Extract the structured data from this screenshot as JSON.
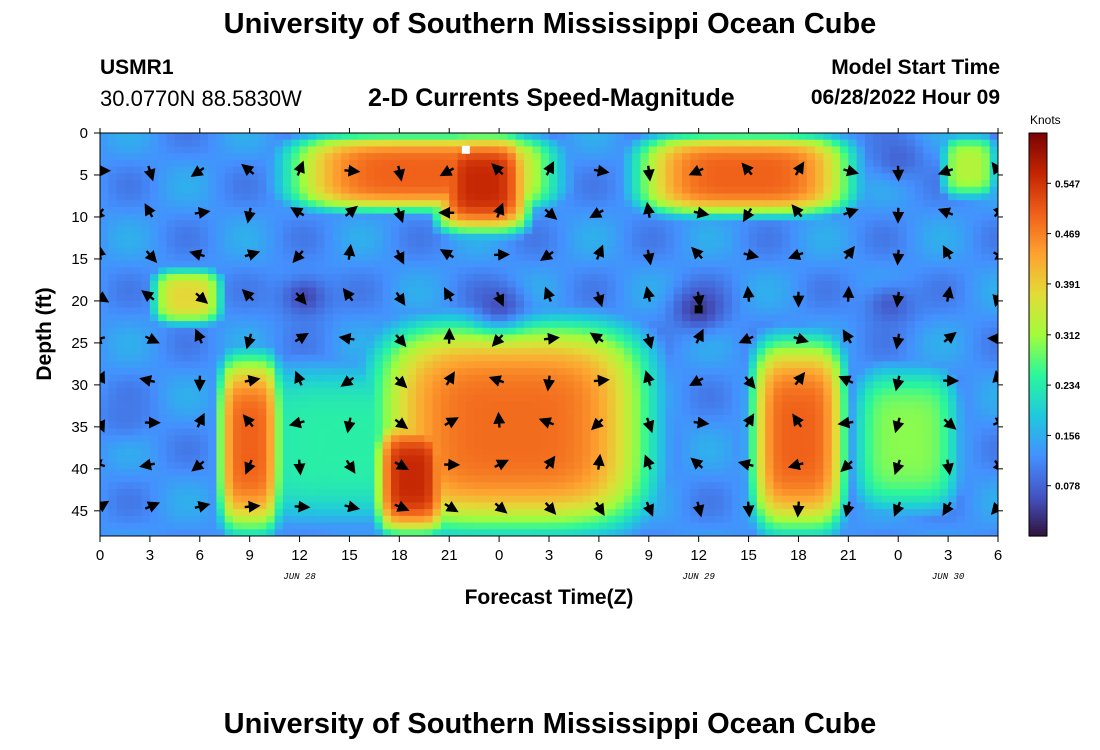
{
  "header": {
    "title": "University of Southern Mississippi Ocean Cube",
    "station": "USMR1",
    "coordinates": "30.0770N  88.5830W",
    "subtitle": "2-D Currents Speed-Magnitude",
    "model_start_label": "Model Start Time",
    "model_start_time": "06/28/2022 Hour 09"
  },
  "footer": {
    "title": "University of Southern Mississippi Ocean Cube"
  },
  "chart_data": {
    "type": "heatmap",
    "title": "2-D Currents Speed-Magnitude",
    "xlabel": "Forecast Time(Z)",
    "ylabel": "Depth (ft)",
    "x_ticks": [
      "0",
      "3",
      "6",
      "9",
      "12",
      "15",
      "18",
      "21",
      "0",
      "3",
      "6",
      "9",
      "12",
      "15",
      "18",
      "21",
      "0",
      "3",
      "6"
    ],
    "x_range_hours": [
      0,
      54
    ],
    "date_labels": [
      {
        "text": "JUN 28",
        "hour": 12
      },
      {
        "text": "JUN 29",
        "hour": 36
      },
      {
        "text": "JUN 30",
        "hour": 51
      }
    ],
    "y_ticks": [
      0,
      5,
      10,
      15,
      20,
      25,
      30,
      35,
      40,
      45
    ],
    "ylim": [
      0,
      48
    ],
    "y_inverted": true,
    "colorbar": {
      "label": "Knots",
      "ticks": [
        "0.078",
        "0.156",
        "0.234",
        "0.312",
        "0.391",
        "0.469",
        "0.547"
      ],
      "range": [
        0,
        0.625
      ]
    },
    "colormap": [
      "#30123b",
      "#4454c4",
      "#4490fe",
      "#1fc9dd",
      "#2bf69c",
      "#a2fc3c",
      "#e2dc38",
      "#fea331",
      "#f0611a",
      "#c42503",
      "#7a0403"
    ],
    "regions": [
      {
        "t0": 11,
        "t1": 27.5,
        "d0": 0,
        "d1": 9.5,
        "speed": 0.5
      },
      {
        "t0": 20,
        "t1": 26,
        "d0": 0,
        "d1": 12,
        "speed": 0.56
      },
      {
        "t0": 32,
        "t1": 45.5,
        "d0": 0,
        "d1": 10,
        "speed": 0.5
      },
      {
        "t0": 50.5,
        "t1": 54,
        "d0": 0,
        "d1": 8,
        "speed": 0.33
      },
      {
        "t0": 3,
        "t1": 7.5,
        "d0": 16,
        "d1": 23,
        "speed": 0.38
      },
      {
        "t0": 7,
        "t1": 11,
        "d0": 26,
        "d1": 48,
        "speed": 0.5
      },
      {
        "t0": 16,
        "t1": 33.5,
        "d0": 22,
        "d1": 48,
        "speed": 0.49
      },
      {
        "t0": 16.5,
        "t1": 21,
        "d0": 34,
        "d1": 48,
        "speed": 0.56
      },
      {
        "t0": 39,
        "t1": 45,
        "d0": 24,
        "d1": 48,
        "speed": 0.5
      },
      {
        "t0": 45,
        "t1": 52,
        "d0": 27,
        "d1": 46,
        "speed": 0.3
      },
      {
        "t0": 6,
        "t1": 24,
        "d0": 26,
        "d1": 48,
        "speed": 0.24
      }
    ],
    "lows": [
      {
        "t": 12.3,
        "d": 19.5,
        "speed": 0.05
      },
      {
        "t": 24,
        "d": 20.5,
        "speed": 0.06
      },
      {
        "t": 36,
        "d": 21,
        "speed": 0.04
      },
      {
        "t": 47.5,
        "d": 20.5,
        "speed": 0.07
      },
      {
        "t": 48,
        "d": 3,
        "speed": 0.08
      },
      {
        "t": 1.5,
        "d": 34,
        "speed": 0.1
      }
    ],
    "markers": [
      {
        "name": "surface-max-marker",
        "hour": 22,
        "depth": 2,
        "color": "#ffffff"
      },
      {
        "name": "minimum-marker",
        "hour": 36,
        "depth": 21,
        "color": "#000000"
      }
    ],
    "vector_hours": [
      0,
      3,
      6,
      9,
      12,
      15,
      18,
      21,
      24,
      27,
      30,
      33,
      36,
      39,
      42,
      45,
      48,
      51,
      54
    ],
    "vector_depths": [
      4.5,
      9.5,
      14.5,
      19.5,
      24.5,
      29.5,
      34.5,
      39.5,
      44.5
    ]
  }
}
